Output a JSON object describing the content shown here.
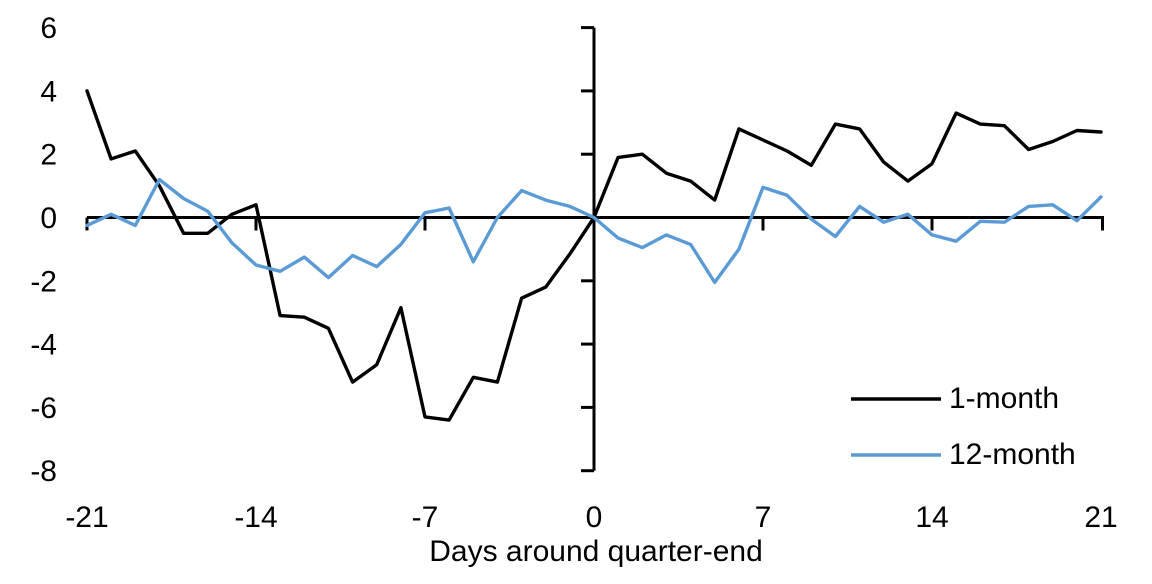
{
  "chart_data": {
    "type": "line",
    "title": "",
    "xlabel": "Days around quarter-end",
    "ylabel": "",
    "xlim": [
      -21,
      21
    ],
    "ylim": [
      -8,
      6
    ],
    "grid": false,
    "legend_position": "lower-right",
    "x_tick_labels": [
      "-21",
      "-14",
      "-7",
      "0",
      "7",
      "14",
      "21"
    ],
    "x_tick_values": [
      -21,
      -14,
      -7,
      0,
      7,
      14,
      21
    ],
    "y_tick_labels": [
      "6",
      "4",
      "2",
      "0",
      "-2",
      "-4",
      "-6",
      "-8"
    ],
    "y_tick_values": [
      6,
      4,
      2,
      0,
      -2,
      -4,
      -6,
      -8
    ],
    "x": [
      -21,
      -20,
      -19,
      -18,
      -17,
      -16,
      -15,
      -14,
      -13,
      -12,
      -11,
      -10,
      -9,
      -8,
      -7,
      -6,
      -5,
      -4,
      -3,
      -2,
      -1,
      0,
      1,
      2,
      3,
      4,
      5,
      6,
      7,
      8,
      9,
      10,
      11,
      12,
      13,
      14,
      15,
      16,
      17,
      18,
      19,
      20,
      21
    ],
    "series": [
      {
        "name": "1-month",
        "color": "#000000",
        "values": [
          4.0,
          1.85,
          2.1,
          1.0,
          -0.5,
          -0.5,
          0.1,
          0.4,
          -3.1,
          -3.15,
          -3.5,
          -5.2,
          -4.65,
          -2.85,
          -6.3,
          -6.4,
          -5.05,
          -5.2,
          -2.55,
          -2.2,
          -1.15,
          0.0,
          1.9,
          2.0,
          1.4,
          1.15,
          0.55,
          2.8,
          2.45,
          2.1,
          1.65,
          2.95,
          2.8,
          1.75,
          1.15,
          1.7,
          3.3,
          2.95,
          2.9,
          2.15,
          2.4,
          2.75,
          2.7
        ]
      },
      {
        "name": "12-month",
        "color": "#5B9BD5",
        "values": [
          -0.25,
          0.1,
          -0.25,
          1.2,
          0.6,
          0.2,
          -0.8,
          -1.5,
          -1.7,
          -1.25,
          -1.9,
          -1.2,
          -1.55,
          -0.85,
          0.15,
          0.3,
          -1.4,
          0.0,
          0.85,
          0.55,
          0.35,
          0.0,
          -0.65,
          -0.95,
          -0.55,
          -0.85,
          -2.05,
          -1.0,
          0.95,
          0.7,
          -0.05,
          -0.6,
          0.35,
          -0.15,
          0.1,
          -0.55,
          -0.75,
          -0.12,
          -0.15,
          0.35,
          0.4,
          -0.1,
          0.65
        ]
      }
    ]
  }
}
